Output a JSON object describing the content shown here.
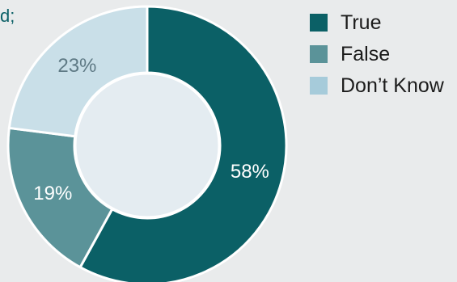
{
  "header": {
    "partial_title": "d;"
  },
  "colors": {
    "background": "#e9ebec",
    "center": "#e4ecf1",
    "separator": "#ffffff",
    "label_dark": "#5f7a85",
    "label_light": "#ffffff"
  },
  "chart_data": {
    "type": "pie",
    "variant": "donut",
    "start_angle_deg": 0,
    "direction": "clockwise",
    "slices": [
      {
        "label": "True",
        "value": 58,
        "display": "58%",
        "color": "#0b6066",
        "label_color": "#ffffff"
      },
      {
        "label": "False",
        "value": 19,
        "display": "19%",
        "color": "#5b9399",
        "label_color": "#ffffff"
      },
      {
        "label": "Don’t Know",
        "value": 23,
        "display": "23%",
        "color": "#c9dfe8",
        "label_color": "#5f7a85"
      }
    ],
    "legend": {
      "position": "top-right",
      "entries": [
        {
          "label": "True",
          "color": "#0b6066"
        },
        {
          "label": "False",
          "color": "#5b9399"
        },
        {
          "label": "Don’t Know",
          "color": "#a6cbda"
        }
      ]
    }
  }
}
